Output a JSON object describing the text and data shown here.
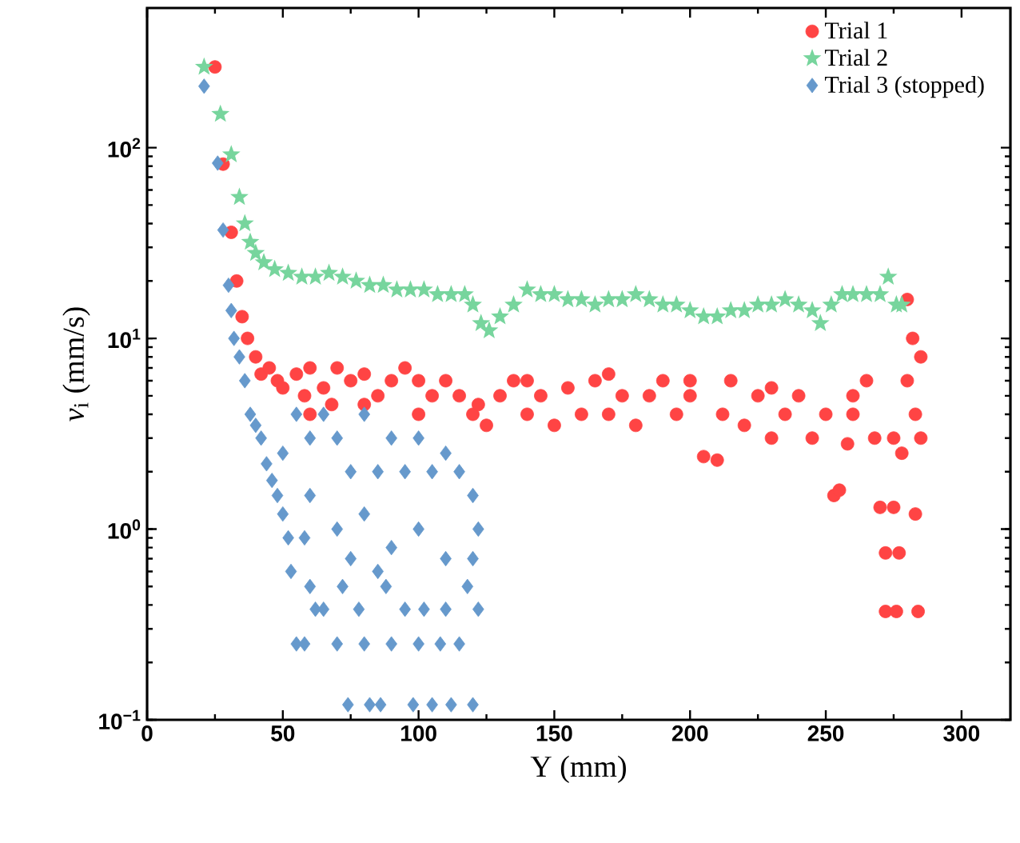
{
  "chart_data": {
    "type": "scatter",
    "xlabel": "Y (mm)",
    "ylabel": "*v*$_{i}$ (mm/s)",
    "log": "y",
    "grid": false,
    "legend": "top right",
    "xlim": [
      0,
      318
    ],
    "ylim": [
      0.1,
      540
    ],
    "xticks": [
      0,
      50,
      100,
      150,
      200,
      250,
      300
    ],
    "yticks": [
      {
        "value": 0.1,
        "label": "10$^{−1}$"
      },
      {
        "value": 1,
        "label": "10$^{0}$"
      },
      {
        "value": 10,
        "label": "10$^{1}$"
      },
      {
        "value": 100,
        "label": "10$^{2}$"
      }
    ],
    "series": [
      {
        "name": "Trial 1",
        "color": "#ff4444",
        "marker": "circle",
        "x": [
          25,
          28,
          31,
          33,
          35,
          37,
          40,
          42,
          45,
          48,
          50,
          55,
          58,
          60,
          65,
          68,
          70,
          75,
          80,
          85,
          90,
          95,
          100,
          105,
          110,
          115,
          120,
          122,
          125,
          130,
          135,
          140,
          145,
          150,
          155,
          160,
          165,
          170,
          175,
          180,
          185,
          190,
          195,
          200,
          205,
          210,
          212,
          215,
          220,
          225,
          230,
          235,
          240,
          245,
          250,
          253,
          255,
          258,
          260,
          265,
          268,
          270,
          272,
          272,
          275,
          276,
          277,
          278,
          280,
          280,
          282,
          283,
          283,
          284,
          285,
          285,
          60,
          80,
          100,
          140,
          170,
          200,
          230,
          260,
          275
        ],
        "values": [
          265,
          82,
          36,
          20,
          13,
          10,
          8,
          6.5,
          7,
          6,
          5.5,
          6.5,
          5,
          7,
          5.5,
          4.5,
          7,
          6,
          6.5,
          5,
          6,
          7,
          6,
          5,
          6,
          5,
          4,
          4.5,
          3.5,
          5,
          6,
          4,
          5,
          3.5,
          5.5,
          4,
          6,
          4,
          5,
          3.5,
          5,
          6,
          4,
          5,
          2.4,
          2.3,
          4,
          6,
          3.5,
          5,
          3,
          4,
          5,
          3,
          4,
          1.5,
          1.6,
          2.8,
          5,
          6,
          3,
          1.3,
          0.75,
          0.37,
          1.3,
          0.37,
          0.75,
          2.5,
          6,
          16,
          10,
          4,
          1.2,
          0.37,
          8,
          3,
          4,
          4.5,
          4,
          6,
          6.5,
          6,
          5.5,
          4,
          3
        ]
      },
      {
        "name": "Trial 2",
        "color": "#77d59d",
        "marker": "star",
        "x": [
          21,
          27,
          31,
          34,
          36,
          38,
          40,
          43,
          47,
          52,
          57,
          62,
          67,
          72,
          77,
          82,
          87,
          92,
          97,
          102,
          107,
          112,
          117,
          120,
          123,
          126,
          130,
          135,
          140,
          145,
          150,
          155,
          160,
          165,
          170,
          175,
          180,
          185,
          190,
          195,
          200,
          205,
          210,
          215,
          220,
          225,
          230,
          235,
          240,
          245,
          248,
          252,
          256,
          260,
          265,
          270,
          273,
          276,
          278
        ],
        "values": [
          265,
          150,
          92,
          55,
          40,
          32,
          28,
          25,
          23,
          22,
          21,
          21,
          22,
          21,
          20,
          19,
          19,
          18,
          18,
          18,
          17,
          17,
          17,
          15,
          12,
          11,
          13,
          15,
          18,
          17,
          17,
          16,
          16,
          15,
          16,
          16,
          17,
          16,
          15,
          15,
          14,
          13,
          13,
          14,
          14,
          15,
          15,
          16,
          15,
          14,
          12,
          15,
          17,
          17,
          17,
          17,
          21,
          15,
          15
        ]
      },
      {
        "name": "Trial 3 (stopped)",
        "color": "#6699cc",
        "marker": "diamond",
        "x": [
          21,
          26,
          28,
          30,
          31,
          32,
          34,
          36,
          38,
          40,
          42,
          44,
          46,
          48,
          50,
          52,
          53,
          55,
          58,
          60,
          62,
          65,
          70,
          72,
          74,
          78,
          80,
          82,
          86,
          88,
          90,
          95,
          98,
          100,
          102,
          105,
          108,
          110,
          112,
          115,
          118,
          120,
          122,
          55,
          60,
          65,
          70,
          75,
          80,
          85,
          90,
          95,
          100,
          105,
          110,
          115,
          120,
          122,
          60,
          70,
          80,
          90,
          100,
          110,
          120,
          50,
          58,
          75,
          85
        ],
        "values": [
          210,
          83,
          37,
          19,
          14,
          10,
          8,
          6,
          4,
          3.5,
          3,
          2.2,
          1.8,
          1.5,
          1.2,
          0.9,
          0.6,
          0.25,
          0.25,
          0.5,
          0.38,
          0.38,
          0.25,
          0.5,
          0.12,
          0.38,
          0.25,
          0.12,
          0.12,
          0.5,
          0.25,
          0.38,
          0.12,
          0.25,
          0.38,
          0.12,
          0.25,
          0.38,
          0.12,
          0.25,
          0.5,
          0.12,
          0.38,
          4,
          3,
          4,
          3,
          2,
          4,
          2,
          3,
          2,
          3,
          2,
          2.5,
          2,
          1.5,
          1,
          1.5,
          1,
          1.2,
          0.8,
          1,
          0.7,
          0.7,
          2.5,
          0.9,
          0.7,
          0.6
        ]
      }
    ]
  }
}
